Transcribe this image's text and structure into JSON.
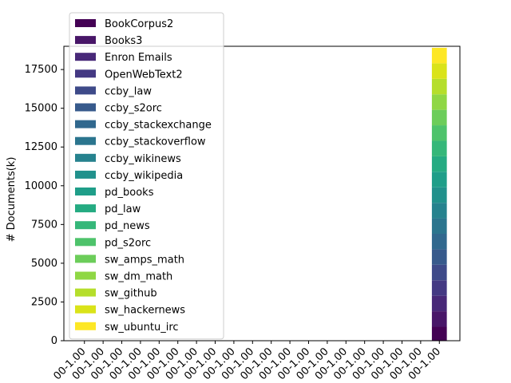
{
  "chart_data": {
    "type": "bar",
    "stacked": true,
    "ylabel": "# Documents(k)",
    "xlabel": "",
    "ylim": [
      0,
      19000
    ],
    "yticks": [
      0,
      2500,
      5000,
      7500,
      10000,
      12500,
      15000,
      17500
    ],
    "categories": [
      "00-1.00",
      "00-1.00",
      "00-1.00",
      "00-1.00",
      "00-1.00",
      "00-1.00",
      "00-1.00",
      "00-1.00",
      "00-1.00",
      "00-1.00",
      "00-1.00",
      "00-1.00",
      "00-1.00",
      "00-1.00",
      "00-1.00",
      "00-1.00",
      "00-1.00",
      "00-1.00",
      "00-1.00",
      "00-1.00"
    ],
    "legend_position": "upper-left",
    "grid": false,
    "series": [
      {
        "name": "BookCorpus2",
        "color": "#440154",
        "values": [
          0,
          0,
          0,
          0,
          0,
          0,
          0,
          0,
          0,
          0,
          0,
          0,
          0,
          0,
          0,
          0,
          0,
          0,
          0,
          900
        ]
      },
      {
        "name": "Books3",
        "color": "#481668",
        "values": [
          0,
          0,
          0,
          0,
          0,
          0,
          0,
          0,
          0,
          0,
          0,
          0,
          0,
          0,
          0,
          0,
          0,
          0,
          0,
          1000
        ]
      },
      {
        "name": "Enron Emails",
        "color": "#482878",
        "values": [
          0,
          0,
          0,
          0,
          0,
          0,
          0,
          0,
          0,
          0,
          0,
          0,
          0,
          0,
          0,
          0,
          0,
          0,
          0,
          1000
        ]
      },
      {
        "name": "OpenWebText2",
        "color": "#443983",
        "values": [
          0,
          0,
          0,
          0,
          0,
          0,
          0,
          0,
          0,
          0,
          0,
          0,
          0,
          0,
          0,
          0,
          0,
          0,
          0,
          1000
        ]
      },
      {
        "name": "ccby_law",
        "color": "#3e4a89",
        "values": [
          0,
          0,
          0,
          0,
          0,
          0,
          0,
          0,
          0,
          0,
          0,
          0,
          0,
          0,
          0,
          0,
          0,
          0,
          0,
          1000
        ]
      },
      {
        "name": "ccby_s2orc",
        "color": "#375a8c",
        "values": [
          0,
          0,
          0,
          0,
          0,
          0,
          0,
          0,
          0,
          0,
          0,
          0,
          0,
          0,
          0,
          0,
          0,
          0,
          0,
          1000
        ]
      },
      {
        "name": "ccby_stackexchange",
        "color": "#31688e",
        "values": [
          0,
          0,
          0,
          0,
          0,
          0,
          0,
          0,
          0,
          0,
          0,
          0,
          0,
          0,
          0,
          0,
          0,
          0,
          0,
          1000
        ]
      },
      {
        "name": "ccby_stackoverflow",
        "color": "#2b758e",
        "values": [
          0,
          0,
          0,
          0,
          0,
          0,
          0,
          0,
          0,
          0,
          0,
          0,
          0,
          0,
          0,
          0,
          0,
          0,
          0,
          1000
        ]
      },
      {
        "name": "ccby_wikinews",
        "color": "#26828e",
        "values": [
          0,
          0,
          0,
          0,
          0,
          0,
          0,
          0,
          0,
          0,
          0,
          0,
          0,
          0,
          0,
          0,
          0,
          0,
          0,
          1000
        ]
      },
      {
        "name": "ccby_wikipedia",
        "color": "#21918c",
        "values": [
          0,
          0,
          0,
          0,
          0,
          0,
          0,
          0,
          0,
          0,
          0,
          0,
          0,
          0,
          0,
          0,
          0,
          0,
          0,
          1000
        ]
      },
      {
        "name": "pd_books",
        "color": "#1f9e89",
        "values": [
          0,
          0,
          0,
          0,
          0,
          0,
          0,
          0,
          0,
          0,
          0,
          0,
          0,
          0,
          0,
          0,
          0,
          0,
          0,
          1000
        ]
      },
      {
        "name": "pd_law",
        "color": "#25ab82",
        "values": [
          0,
          0,
          0,
          0,
          0,
          0,
          0,
          0,
          0,
          0,
          0,
          0,
          0,
          0,
          0,
          0,
          0,
          0,
          0,
          1000
        ]
      },
      {
        "name": "pd_news",
        "color": "#35b779",
        "values": [
          0,
          0,
          0,
          0,
          0,
          0,
          0,
          0,
          0,
          0,
          0,
          0,
          0,
          0,
          0,
          0,
          0,
          0,
          0,
          1000
        ]
      },
      {
        "name": "pd_s2orc",
        "color": "#4ec36b",
        "values": [
          0,
          0,
          0,
          0,
          0,
          0,
          0,
          0,
          0,
          0,
          0,
          0,
          0,
          0,
          0,
          0,
          0,
          0,
          0,
          1000
        ]
      },
      {
        "name": "sw_amps_math",
        "color": "#6ccd5a",
        "values": [
          0,
          0,
          0,
          0,
          0,
          0,
          0,
          0,
          0,
          0,
          0,
          0,
          0,
          0,
          0,
          0,
          0,
          0,
          0,
          1000
        ]
      },
      {
        "name": "sw_dm_math",
        "color": "#8fd744",
        "values": [
          0,
          0,
          0,
          0,
          0,
          0,
          0,
          0,
          0,
          0,
          0,
          0,
          0,
          0,
          0,
          0,
          0,
          0,
          0,
          1000
        ]
      },
      {
        "name": "sw_github",
        "color": "#b5de2b",
        "values": [
          0,
          0,
          0,
          0,
          0,
          0,
          0,
          0,
          0,
          0,
          0,
          0,
          0,
          0,
          0,
          0,
          0,
          0,
          0,
          1000
        ]
      },
      {
        "name": "sw_hackernews",
        "color": "#dae319",
        "values": [
          0,
          0,
          0,
          0,
          0,
          0,
          0,
          0,
          0,
          0,
          0,
          0,
          0,
          0,
          0,
          0,
          0,
          0,
          0,
          1000
        ]
      },
      {
        "name": "sw_ubuntu_irc",
        "color": "#fde725",
        "values": [
          0,
          0,
          0,
          0,
          0,
          0,
          0,
          0,
          0,
          0,
          0,
          0,
          0,
          0,
          0,
          0,
          0,
          0,
          0,
          1000
        ]
      }
    ]
  }
}
